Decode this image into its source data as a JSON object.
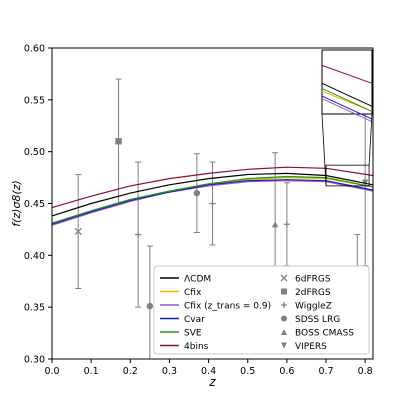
{
  "chart_data": {
    "type": "line",
    "title": "",
    "xlabel": "z",
    "ylabel": "f(z)σ8(z)",
    "xlim": [
      0.0,
      0.82
    ],
    "ylim": [
      0.3,
      0.6
    ],
    "xticks": [
      "0.0",
      "0.1",
      "0.2",
      "0.3",
      "0.4",
      "0.5",
      "0.6",
      "0.7",
      "0.8"
    ],
    "yticks": [
      "0.30",
      "0.35",
      "0.40",
      "0.45",
      "0.50",
      "0.55",
      "0.60"
    ],
    "grid": false,
    "legend_location": "lower right",
    "models": [
      {
        "name": "ΛCDM",
        "color": "#000000",
        "x": [
          0.0,
          0.1,
          0.2,
          0.3,
          0.4,
          0.5,
          0.6,
          0.7,
          0.82
        ],
        "y": [
          0.438,
          0.45,
          0.46,
          0.468,
          0.474,
          0.478,
          0.479,
          0.477,
          0.468
        ]
      },
      {
        "name": "Cfix",
        "color": "#f2b800",
        "x": [
          0.0,
          0.1,
          0.2,
          0.3,
          0.4,
          0.5,
          0.6,
          0.7,
          0.82
        ],
        "y": [
          0.431,
          0.443,
          0.454,
          0.462,
          0.469,
          0.473,
          0.475,
          0.474,
          0.466
        ]
      },
      {
        "name": "Cfix (z_trans = 0.9)",
        "color": "#9b59d0",
        "x": [
          0.0,
          0.1,
          0.2,
          0.3,
          0.4,
          0.5,
          0.6,
          0.7,
          0.82
        ],
        "y": [
          0.429,
          0.441,
          0.452,
          0.461,
          0.467,
          0.471,
          0.472,
          0.471,
          0.462
        ]
      },
      {
        "name": "Cvar",
        "color": "#1c1cb8",
        "x": [
          0.0,
          0.1,
          0.2,
          0.3,
          0.4,
          0.5,
          0.6,
          0.7,
          0.82
        ],
        "y": [
          0.43,
          0.442,
          0.453,
          0.461,
          0.468,
          0.472,
          0.473,
          0.472,
          0.463
        ]
      },
      {
        "name": "SVE",
        "color": "#1e9b1e",
        "x": [
          0.0,
          0.1,
          0.2,
          0.3,
          0.4,
          0.5,
          0.6,
          0.7,
          0.82
        ],
        "y": [
          0.431,
          0.443,
          0.454,
          0.462,
          0.469,
          0.474,
          0.476,
          0.475,
          0.466
        ]
      },
      {
        "name": "4bins",
        "color": "#8b1030",
        "x": [
          0.0,
          0.1,
          0.2,
          0.3,
          0.4,
          0.5,
          0.6,
          0.7,
          0.82
        ],
        "y": [
          0.446,
          0.457,
          0.467,
          0.474,
          0.479,
          0.483,
          0.485,
          0.484,
          0.477
        ]
      }
    ],
    "surveys": [
      {
        "name": "6dFRGS",
        "marker": "x",
        "points": [
          {
            "x": 0.067,
            "y": 0.423,
            "err": 0.055
          }
        ]
      },
      {
        "name": "2dFRGS",
        "marker": "square",
        "points": [
          {
            "x": 0.17,
            "y": 0.51,
            "err": 0.06
          }
        ]
      },
      {
        "name": "WiggleZ",
        "marker": "plus",
        "points": [
          {
            "x": 0.22,
            "y": 0.42,
            "err": 0.07
          },
          {
            "x": 0.41,
            "y": 0.45,
            "err": 0.04
          },
          {
            "x": 0.6,
            "y": 0.43,
            "err": 0.04
          },
          {
            "x": 0.78,
            "y": 0.38,
            "err": 0.04
          }
        ]
      },
      {
        "name": "SDSS LRG",
        "marker": "circle",
        "points": [
          {
            "x": 0.25,
            "y": 0.351,
            "err": 0.058
          },
          {
            "x": 0.37,
            "y": 0.46,
            "err": 0.038
          }
        ]
      },
      {
        "name": "BOSS CMASS",
        "marker": "triangle-up",
        "points": [
          {
            "x": 0.57,
            "y": 0.43,
            "err": 0.069
          }
        ]
      },
      {
        "name": "VIPERS",
        "marker": "triangle-down",
        "points": [
          {
            "x": 0.8,
            "y": 0.47,
            "err": 0.08
          }
        ]
      }
    ],
    "inset": {
      "xlim": [
        0.7,
        0.82
      ],
      "ylim": [
        0.465,
        0.49
      ]
    }
  }
}
